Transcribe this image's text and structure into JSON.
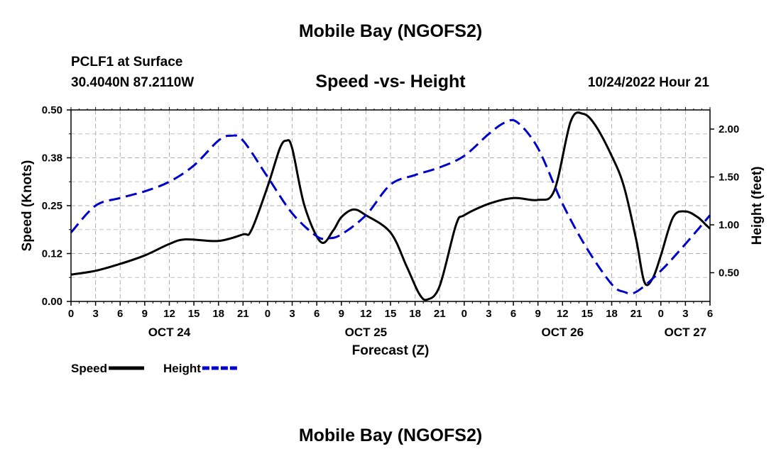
{
  "header": {
    "title": "Mobile Bay (NGOFS2)",
    "station": "PCLF1 at Surface",
    "coords": "30.4040N  87.2110W",
    "subtitle": "Speed -vs- Height",
    "datetime": "10/24/2022 Hour 21"
  },
  "footer": {
    "title": "Mobile Bay (NGOFS2)"
  },
  "chart_data": {
    "type": "line",
    "xlabel": "Forecast (Z)",
    "ylabel_left": "Speed (Knots)",
    "ylabel_right": "Height (feet)",
    "xlim": [
      0,
      78
    ],
    "ylim_left": [
      0,
      0.5
    ],
    "ylim_right": [
      0.2,
      2.2
    ],
    "yticks_left": [
      {
        "v": 0.0,
        "label": "0.00"
      },
      {
        "v": 0.125,
        "label": "0.12"
      },
      {
        "v": 0.25,
        "label": "0.25"
      },
      {
        "v": 0.375,
        "label": "0.38"
      },
      {
        "v": 0.5,
        "label": "0.50"
      }
    ],
    "yticks_right": [
      {
        "v": 0.5,
        "label": "0.50"
      },
      {
        "v": 1.0,
        "label": "1.00"
      },
      {
        "v": 1.5,
        "label": "1.50"
      },
      {
        "v": 2.0,
        "label": "2.00"
      }
    ],
    "xticks": [
      {
        "h": 0,
        "label": "0"
      },
      {
        "h": 3,
        "label": "3"
      },
      {
        "h": 6,
        "label": "6"
      },
      {
        "h": 9,
        "label": "9"
      },
      {
        "h": 12,
        "label": "12"
      },
      {
        "h": 15,
        "label": "15"
      },
      {
        "h": 18,
        "label": "18"
      },
      {
        "h": 21,
        "label": "21"
      },
      {
        "h": 24,
        "label": "0"
      },
      {
        "h": 27,
        "label": "3"
      },
      {
        "h": 30,
        "label": "6"
      },
      {
        "h": 33,
        "label": "9"
      },
      {
        "h": 36,
        "label": "12"
      },
      {
        "h": 39,
        "label": "15"
      },
      {
        "h": 42,
        "label": "18"
      },
      {
        "h": 45,
        "label": "21"
      },
      {
        "h": 48,
        "label": "0"
      },
      {
        "h": 51,
        "label": "3"
      },
      {
        "h": 54,
        "label": "6"
      },
      {
        "h": 57,
        "label": "9"
      },
      {
        "h": 60,
        "label": "12"
      },
      {
        "h": 63,
        "label": "15"
      },
      {
        "h": 66,
        "label": "18"
      },
      {
        "h": 69,
        "label": "21"
      },
      {
        "h": 72,
        "label": "0"
      },
      {
        "h": 75,
        "label": "3"
      },
      {
        "h": 78,
        "label": "6"
      }
    ],
    "date_labels": [
      {
        "h": 12,
        "label": "OCT 24"
      },
      {
        "h": 36,
        "label": "OCT 25"
      },
      {
        "h": 60,
        "label": "OCT 26"
      },
      {
        "h": 75,
        "label": "OCT 27"
      }
    ],
    "legend": [
      {
        "name": "Speed",
        "color": "#000000",
        "style": "solid"
      },
      {
        "name": "Height",
        "color": "#0000cc",
        "style": "dashed"
      }
    ],
    "series": [
      {
        "name": "Speed",
        "axis": "left",
        "color": "#000000",
        "style": "solid",
        "x": [
          0,
          3,
          6,
          9,
          12,
          14,
          18,
          21,
          22,
          24,
          25.5,
          26.3,
          27,
          28.5,
          30.5,
          32,
          33,
          34.5,
          36,
          39,
          41,
          42.5,
          43.5,
          45,
          47,
          48,
          51,
          54,
          57,
          59,
          61,
          62.5,
          64,
          66,
          67.5,
          69,
          70,
          71,
          72,
          73.5,
          75,
          76.5,
          77.5,
          78
        ],
        "y": [
          0.07,
          0.08,
          0.098,
          0.12,
          0.15,
          0.162,
          0.158,
          0.175,
          0.185,
          0.3,
          0.4,
          0.42,
          0.4,
          0.25,
          0.155,
          0.185,
          0.22,
          0.24,
          0.225,
          0.18,
          0.09,
          0.02,
          0.005,
          0.04,
          0.2,
          0.225,
          0.255,
          0.27,
          0.265,
          0.29,
          0.47,
          0.49,
          0.46,
          0.38,
          0.3,
          0.16,
          0.05,
          0.06,
          0.12,
          0.22,
          0.235,
          0.22,
          0.2,
          0.19
        ]
      },
      {
        "name": "Height",
        "axis": "right",
        "color": "#0000cc",
        "style": "dashed",
        "x": [
          0,
          3,
          6,
          9,
          12,
          15,
          18,
          19.5,
          21,
          24,
          27,
          30,
          31.5,
          33,
          36,
          39,
          42,
          45,
          48,
          51,
          53,
          54.5,
          57,
          60,
          63,
          66,
          67.5,
          69,
          72,
          75,
          78
        ],
        "y": [
          0.92,
          1.2,
          1.28,
          1.35,
          1.45,
          1.62,
          1.88,
          1.93,
          1.88,
          1.5,
          1.12,
          0.88,
          0.86,
          0.9,
          1.1,
          1.42,
          1.52,
          1.6,
          1.72,
          1.95,
          2.07,
          2.07,
          1.8,
          1.22,
          0.75,
          0.38,
          0.3,
          0.3,
          0.52,
          0.8,
          1.1
        ]
      }
    ]
  }
}
